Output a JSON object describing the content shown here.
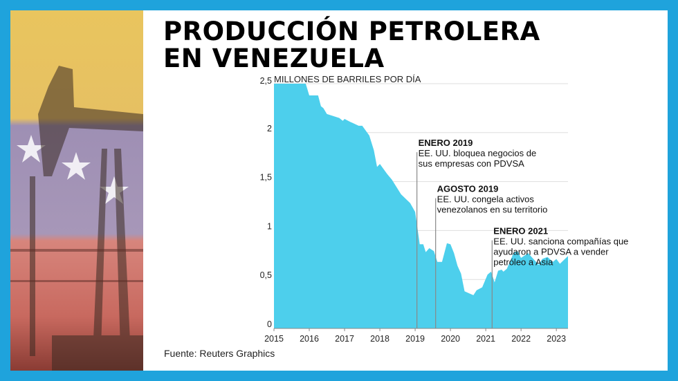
{
  "title_lines": [
    "PRODUCCIÓN PETROLERA",
    "EN VENEZUELA"
  ],
  "source": "Fuente: Reuters Graphics",
  "colors": {
    "frame": "#1fa3dc",
    "area": "#4dcfec",
    "annotation_line": "#888888"
  },
  "chart_data": {
    "type": "area",
    "ylabel": "MILLONES DE BARRILES POR DÍA",
    "xlim": [
      2015,
      2023.33
    ],
    "ylim": [
      0,
      2.5
    ],
    "yticks": [
      "0",
      "0,5",
      "1",
      "1,5",
      "2",
      "2,5"
    ],
    "ytick_values": [
      0,
      0.5,
      1,
      1.5,
      2,
      2.5
    ],
    "xticks": [
      "2015",
      "2016",
      "2017",
      "2018",
      "2019",
      "2020",
      "2021",
      "2022",
      "2023"
    ],
    "grid": true,
    "x": [
      2015.0,
      2015.9,
      2016.0,
      2016.25,
      2016.33,
      2016.4,
      2016.5,
      2016.85,
      2016.95,
      2017.0,
      2017.16,
      2017.4,
      2017.5,
      2017.7,
      2017.83,
      2017.92,
      2018.0,
      2018.2,
      2018.34,
      2018.6,
      2018.86,
      2019.0,
      2019.13,
      2019.23,
      2019.3,
      2019.4,
      2019.53,
      2019.63,
      2019.76,
      2019.9,
      2020.0,
      2020.1,
      2020.2,
      2020.3,
      2020.4,
      2020.58,
      2020.65,
      2020.74,
      2020.9,
      2021.05,
      2021.15,
      2021.25,
      2021.35,
      2021.45,
      2021.5,
      2021.6,
      2021.8,
      2021.9,
      2022.0,
      2022.2,
      2022.5,
      2022.6,
      2022.75,
      2022.9,
      2023.0,
      2023.1,
      2023.33
    ],
    "y": [
      2.5,
      2.5,
      2.38,
      2.38,
      2.27,
      2.25,
      2.19,
      2.15,
      2.12,
      2.14,
      2.11,
      2.07,
      2.07,
      1.97,
      1.82,
      1.65,
      1.68,
      1.58,
      1.52,
      1.37,
      1.28,
      1.19,
      0.86,
      0.86,
      0.78,
      0.82,
      0.79,
      0.68,
      0.68,
      0.87,
      0.86,
      0.77,
      0.64,
      0.56,
      0.38,
      0.35,
      0.34,
      0.39,
      0.42,
      0.55,
      0.58,
      0.47,
      0.59,
      0.6,
      0.58,
      0.61,
      0.78,
      0.79,
      0.72,
      0.77,
      0.65,
      0.71,
      0.73,
      0.68,
      0.71,
      0.66,
      0.74
    ],
    "annotations": [
      {
        "x": 2019.05,
        "y": 1.8,
        "heading": "ENERO 2019",
        "lines": [
          "EE. UU. bloquea negocios de",
          "sus empresas con PDVSA"
        ]
      },
      {
        "x": 2019.58,
        "y": 1.33,
        "heading": "AGOSTO 2019",
        "lines": [
          "EE. UU. congela activos",
          "venezolanos en su territorio"
        ]
      },
      {
        "x": 2021.18,
        "y": 0.9,
        "heading": "ENERO 2021",
        "lines": [
          "EE. UU. sanciona compañías que",
          "ayudaron a PDVSA a vender",
          "petróleo a Asia"
        ]
      }
    ]
  }
}
